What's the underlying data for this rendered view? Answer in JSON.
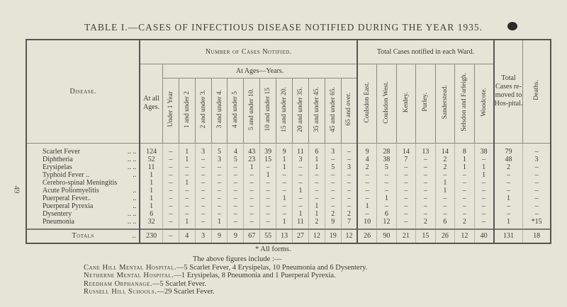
{
  "page_number": "49",
  "title": "TABLE I.—CASES OF INFECTIOUS DISEASE NOTIFIED DURING THE YEAR 1935.",
  "headers": {
    "disease": "Disease.",
    "number_notified": "Number of Cases Notified.",
    "at_ages_years": "At Ages—Years.",
    "at_all_ages": "At all Ages.",
    "age_groups": [
      "Under 1 Year",
      "1 and under 2",
      "2 and under 3.",
      "3 and under 4.",
      "4 and under 5",
      "5 and under 10.",
      "10 and under 15",
      "15 and under 20.",
      "20 and under 35.",
      "35 and under 45.",
      "45 and under 65.",
      "65 and over."
    ],
    "wards_group": "Total Cases notified in each Ward.",
    "wards": [
      "Coulsdon East.",
      "Coulsdon West.",
      "Kenley.",
      "Purley.",
      "Sanderstead.",
      "Selsdon and Farleigh.",
      "Woodcote."
    ],
    "removed_to_hospital": "Total Cases re-moved to Hos-pital.",
    "deaths": "Deaths."
  },
  "rows": [
    {
      "disease": "Scarlet Fever",
      "dots": ".. ..",
      "all": "124",
      "ages": [
        "–",
        "1",
        "3",
        "5",
        "4",
        "43",
        "39",
        "9",
        "11",
        "6",
        "3",
        "–"
      ],
      "wards": [
        "9",
        "28",
        "14",
        "13",
        "14",
        "8",
        "38"
      ],
      "hospital": "79",
      "deaths": "–"
    },
    {
      "disease": "Diphtheria",
      "dots": ".. ..",
      "all": "52",
      "ages": [
        "–",
        "1",
        "–",
        "3",
        "5",
        "23",
        "15",
        "1",
        "3",
        "1",
        "–",
        "–"
      ],
      "wards": [
        "4",
        "38",
        "7",
        "–",
        "2",
        "1",
        "–"
      ],
      "hospital": "48",
      "deaths": "3"
    },
    {
      "disease": "Erysipelas",
      "dots": ".. ..",
      "all": "11",
      "ages": [
        "–",
        "–",
        "–",
        "–",
        "–",
        "1",
        "–",
        "1",
        "–",
        "1",
        "5",
        "3"
      ],
      "wards": [
        "2",
        "5",
        "–",
        "–",
        "2",
        "1",
        "1"
      ],
      "hospital": "2",
      "deaths": "–"
    },
    {
      "disease": "Typhoid Fever ..",
      "dots": "..",
      "all": "1",
      "ages": [
        "–",
        "–",
        "–",
        "–",
        "–",
        "–",
        "1",
        "–",
        "–",
        "–",
        "–",
        "–"
      ],
      "wards": [
        "–",
        "–",
        "–",
        "–",
        "–",
        "–",
        "1"
      ],
      "hospital": "–",
      "deaths": "–"
    },
    {
      "disease": "Cerebro-spinal Meningitis",
      "dots": "",
      "all": "1",
      "ages": [
        "–",
        "1",
        "–",
        "–",
        "–",
        "–",
        "–",
        "–",
        "–",
        "–",
        "–",
        "–"
      ],
      "wards": [
        "–",
        "–",
        "–",
        "–",
        "1",
        "–",
        "–"
      ],
      "hospital": "–",
      "deaths": "–"
    },
    {
      "disease": "Acute Poliomyelitis",
      "dots": "..",
      "all": "1",
      "ages": [
        "–",
        "–",
        "–",
        "–",
        "–",
        "–",
        "–",
        "–",
        "1",
        "–",
        "–",
        "–"
      ],
      "wards": [
        "–",
        "–",
        "–",
        "–",
        "1",
        "–",
        "–"
      ],
      "hospital": "–",
      "deaths": "–"
    },
    {
      "disease": "Puerperal Fever..",
      "dots": "..",
      "all": "1",
      "ages": [
        "–",
        "–",
        "–",
        "–",
        "–",
        "–",
        "–",
        "1",
        "–",
        "–",
        "–",
        "–"
      ],
      "wards": [
        "–",
        "1",
        "–",
        "–",
        "–",
        "–",
        "–"
      ],
      "hospital": "1",
      "deaths": "–"
    },
    {
      "disease": "Puerperal Pyrexia",
      "dots": "..",
      "all": "1",
      "ages": [
        "–",
        "–",
        "–",
        "–",
        "–",
        "–",
        "–",
        "–",
        "–",
        "1",
        "–",
        "–"
      ],
      "wards": [
        "1",
        "–",
        "–",
        "–",
        "–",
        "–",
        "–"
      ],
      "hospital": "–",
      "deaths": "–"
    },
    {
      "disease": "Dysentery",
      "dots": ".. ..",
      "all": "6",
      "ages": [
        "–",
        "–",
        "–",
        "–",
        "–",
        "–",
        "–",
        "–",
        "1",
        "1",
        "2",
        "2"
      ],
      "wards": [
        "–",
        "6",
        "–",
        "–",
        "–",
        "–",
        "–"
      ],
      "hospital": "–",
      "deaths": "–"
    },
    {
      "disease": "Pneumonia",
      "dots": ".. ..",
      "all": "32",
      "ages": [
        "–",
        "1",
        "–",
        "1",
        "–",
        "–",
        "–",
        "1",
        "11",
        "2",
        "9",
        "7"
      ],
      "wards": [
        "10",
        "12",
        "–",
        "2",
        "6",
        "2",
        "–"
      ],
      "hospital": "1",
      "deaths": "*15"
    }
  ],
  "totals": {
    "label": "Totals",
    "dots": "..",
    "all": "230",
    "ages": [
      "–",
      "4",
      "3",
      "9",
      "9",
      "67",
      "55",
      "13",
      "27",
      "12",
      "19",
      "12"
    ],
    "wards": [
      "26",
      "90",
      "21",
      "15",
      "26",
      "12",
      "40"
    ],
    "hospital": "131",
    "deaths": "18"
  },
  "footnote": "* All forms.",
  "notes": {
    "intro": "The above figures include :—",
    "items": [
      {
        "name": "Cane Hill Mental Hospital.",
        "text": "—5 Scarlet Fever, 4 Erysipelas, 10 Pneumonia and 6 Dysentery."
      },
      {
        "name": "Netherne Mental Hospital.",
        "text": "—1 Erysipelas, 8 Pneumonia and 1 Puerperal Pyrexia."
      },
      {
        "name": "Reedham Orphanage.",
        "text": "—5 Scarlet Fever."
      },
      {
        "name": "Russell Hill Schools.",
        "text": "—29 Scarlet Fever."
      }
    ]
  }
}
